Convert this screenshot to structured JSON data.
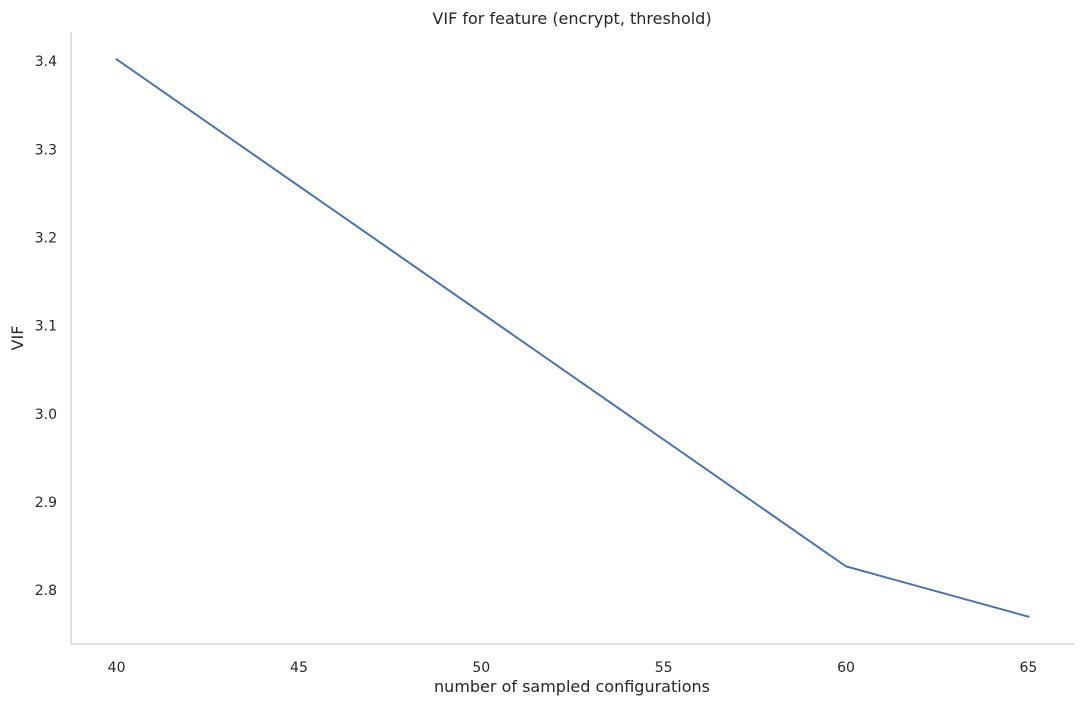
{
  "chart_data": {
    "type": "line",
    "title": "VIF for feature (encrypt, threshold)",
    "xlabel": "number of sampled configurations",
    "ylabel": "VIF",
    "x": [
      40,
      60,
      65
    ],
    "series": [
      {
        "values": [
          3.402,
          2.827,
          2.77
        ]
      }
    ],
    "xlim": [
      38.75,
      66.25
    ],
    "ylim": [
      2.739,
      3.433
    ],
    "xticks": [
      40,
      45,
      50,
      55,
      60,
      65
    ],
    "xtick_labels": [
      "40",
      "45",
      "50",
      "55",
      "60",
      "65"
    ],
    "yticks": [
      2.8,
      2.9,
      3.0,
      3.1,
      3.2,
      3.3,
      3.4
    ],
    "ytick_labels": [
      "2.8",
      "2.9",
      "3.0",
      "3.1",
      "3.2",
      "3.3",
      "3.4"
    ],
    "grid": false,
    "legend": "none",
    "colors": {
      "line": "#4c72b0",
      "axis": "#cccccc",
      "text": "#262626",
      "background": "#ffffff"
    }
  }
}
